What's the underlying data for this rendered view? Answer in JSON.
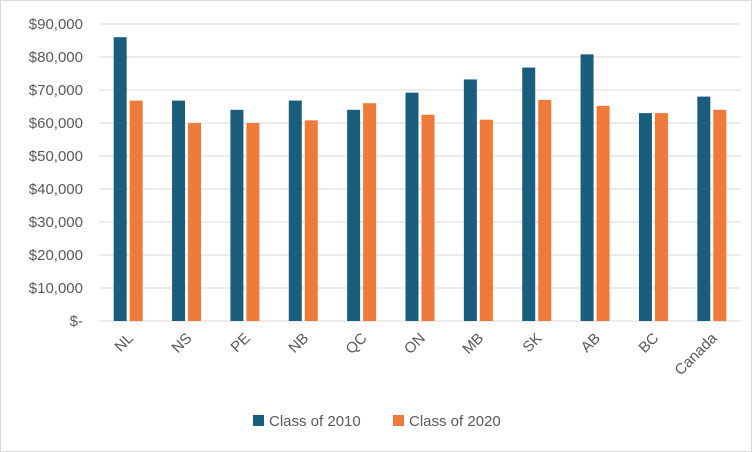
{
  "chart_data": {
    "type": "bar",
    "title": "",
    "xlabel": "",
    "ylabel": "",
    "categories": [
      "NL",
      "NS",
      "PE",
      "NB",
      "QC",
      "ON",
      "MB",
      "SK",
      "AB",
      "BC",
      "Canada"
    ],
    "series": [
      {
        "name": "Class of 2010",
        "color": "#1b5d7d",
        "values": [
          86000,
          66800,
          64000,
          66800,
          64000,
          69200,
          73200,
          76800,
          80800,
          63000,
          68000
        ]
      },
      {
        "name": "Class of 2020",
        "color": "#ef7a3a",
        "values": [
          66800,
          60000,
          60000,
          60800,
          66000,
          62500,
          61000,
          67000,
          65200,
          63000,
          64000
        ]
      }
    ],
    "ylim": [
      0,
      90000
    ],
    "yticks": [
      0,
      10000,
      20000,
      30000,
      40000,
      50000,
      60000,
      70000,
      80000,
      90000
    ],
    "ytick_labels": [
      "$-",
      "$10,000",
      "$20,000",
      "$30,000",
      "$40,000",
      "$50,000",
      "$60,000",
      "$70,000",
      "$80,000",
      "$90,000"
    ],
    "grid": true,
    "legend_position": "bottom"
  }
}
